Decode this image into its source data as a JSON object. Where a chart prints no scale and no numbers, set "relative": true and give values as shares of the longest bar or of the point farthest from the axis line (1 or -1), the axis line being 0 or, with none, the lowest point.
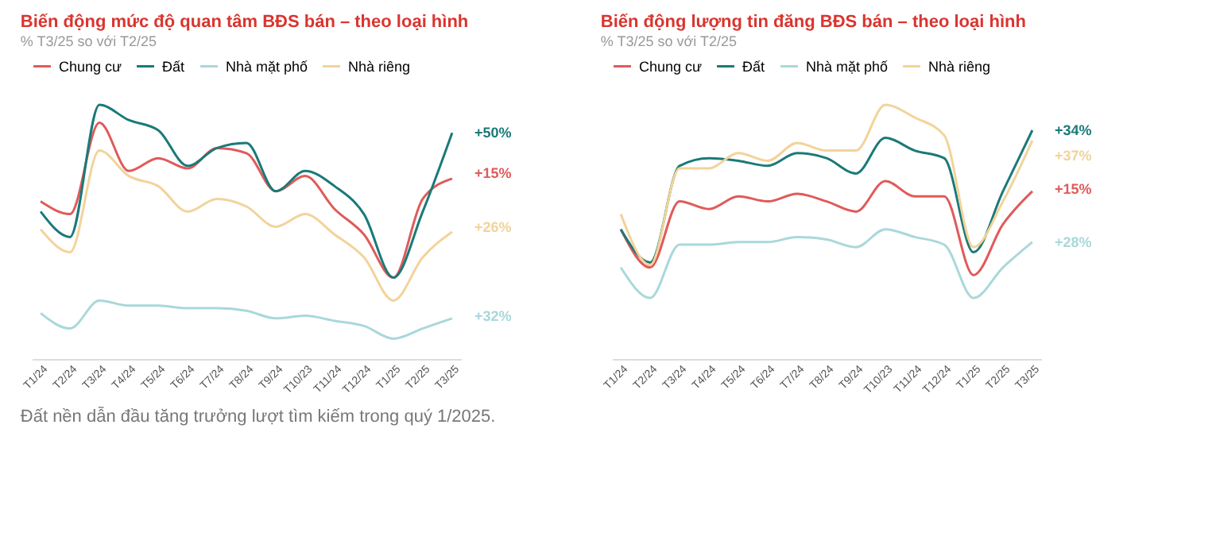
{
  "chart_data": [
    {
      "type": "line",
      "title": "Biến động mức độ quan tâm BĐS bán – theo loại hình",
      "subtitle": "% T3/25 so với T2/25",
      "relative": true,
      "legend": "top",
      "grid": false,
      "categories": [
        "T1/24",
        "T2/24",
        "T3/24",
        "T4/24",
        "T5/24",
        "T6/24",
        "T7/24",
        "T8/24",
        "T9/24",
        "T10/23",
        "T11/24",
        "T12/24",
        "T1/25",
        "T2/25",
        "T3/25"
      ],
      "series": [
        {
          "name": "Chung cư",
          "color": "#e05a5a",
          "values": [
            0.62,
            0.57,
            0.93,
            0.74,
            0.79,
            0.75,
            0.83,
            0.81,
            0.66,
            0.72,
            0.59,
            0.49,
            0.32,
            0.63,
            0.71
          ]
        },
        {
          "name": "Đất",
          "color": "#1a7a78",
          "values": [
            0.58,
            0.48,
            1.0,
            0.94,
            0.9,
            0.76,
            0.83,
            0.85,
            0.66,
            0.74,
            0.68,
            0.57,
            0.32,
            0.58,
            0.89
          ]
        },
        {
          "name": "Nhà mặt phố",
          "color": "#a9d8da",
          "values": [
            0.18,
            0.12,
            0.23,
            0.21,
            0.21,
            0.2,
            0.2,
            0.19,
            0.16,
            0.17,
            0.15,
            0.13,
            0.08,
            0.12,
            0.16
          ]
        },
        {
          "name": "Nhà riêng",
          "color": "#f2d39a",
          "values": [
            0.51,
            0.42,
            0.82,
            0.72,
            0.68,
            0.58,
            0.63,
            0.6,
            0.52,
            0.57,
            0.49,
            0.4,
            0.23,
            0.4,
            0.5
          ]
        }
      ],
      "annotations": [
        {
          "text": "+15%",
          "x": "T3/25",
          "y": 0.73
        },
        {
          "text": "+50%",
          "x": "T3/25",
          "y": 0.89
        },
        {
          "text": "+32%",
          "x": "T3/25",
          "y": 0.17
        },
        {
          "text": "+26%",
          "x": "T3/25",
          "y": 0.52
        },
        "Đất nền dẫn đầu tăng trưởng lượt tìm kiếm trong quý 1/2025."
      ]
    },
    {
      "type": "line",
      "title": "Biến động lượng tin đăng BĐS bán – theo loại hình",
      "subtitle": "% T3/25 so với T2/25",
      "relative": true,
      "legend": "top",
      "grid": false,
      "categories": [
        "T1/24",
        "T2/24",
        "T3/24",
        "T4/24",
        "T5/24",
        "T6/24",
        "T7/24",
        "T8/24",
        "T9/24",
        "T10/23",
        "T11/24",
        "T12/24",
        "T1/25",
        "T2/25",
        "T3/25"
      ],
      "series": [
        {
          "name": "Chung cư",
          "color": "#e05a5a",
          "values": [
            0.51,
            0.36,
            0.62,
            0.59,
            0.64,
            0.62,
            0.65,
            0.62,
            0.58,
            0.7,
            0.64,
            0.64,
            0.33,
            0.53,
            0.66
          ]
        },
        {
          "name": "Đất",
          "color": "#1a7a78",
          "values": [
            0.51,
            0.38,
            0.76,
            0.79,
            0.78,
            0.76,
            0.81,
            0.79,
            0.73,
            0.87,
            0.82,
            0.79,
            0.42,
            0.66,
            0.9
          ]
        },
        {
          "name": "Nhà mặt phố",
          "color": "#a9d8da",
          "values": [
            0.36,
            0.24,
            0.45,
            0.45,
            0.46,
            0.46,
            0.48,
            0.47,
            0.44,
            0.51,
            0.48,
            0.45,
            0.24,
            0.36,
            0.46
          ]
        },
        {
          "name": "Nhà riêng",
          "color": "#f2d39a",
          "values": [
            0.57,
            0.37,
            0.75,
            0.75,
            0.81,
            0.78,
            0.85,
            0.82,
            0.82,
            1.0,
            0.95,
            0.88,
            0.44,
            0.62,
            0.86
          ]
        }
      ],
      "annotations": [
        {
          "text": "+15%",
          "x": "T3/25",
          "y": 0.67
        },
        {
          "text": "+34%",
          "x": "T3/25",
          "y": 0.9
        },
        {
          "text": "+28%",
          "x": "T3/25",
          "y": 0.46
        },
        {
          "text": "+37%",
          "x": "T3/25",
          "y": 0.8
        }
      ]
    }
  ]
}
